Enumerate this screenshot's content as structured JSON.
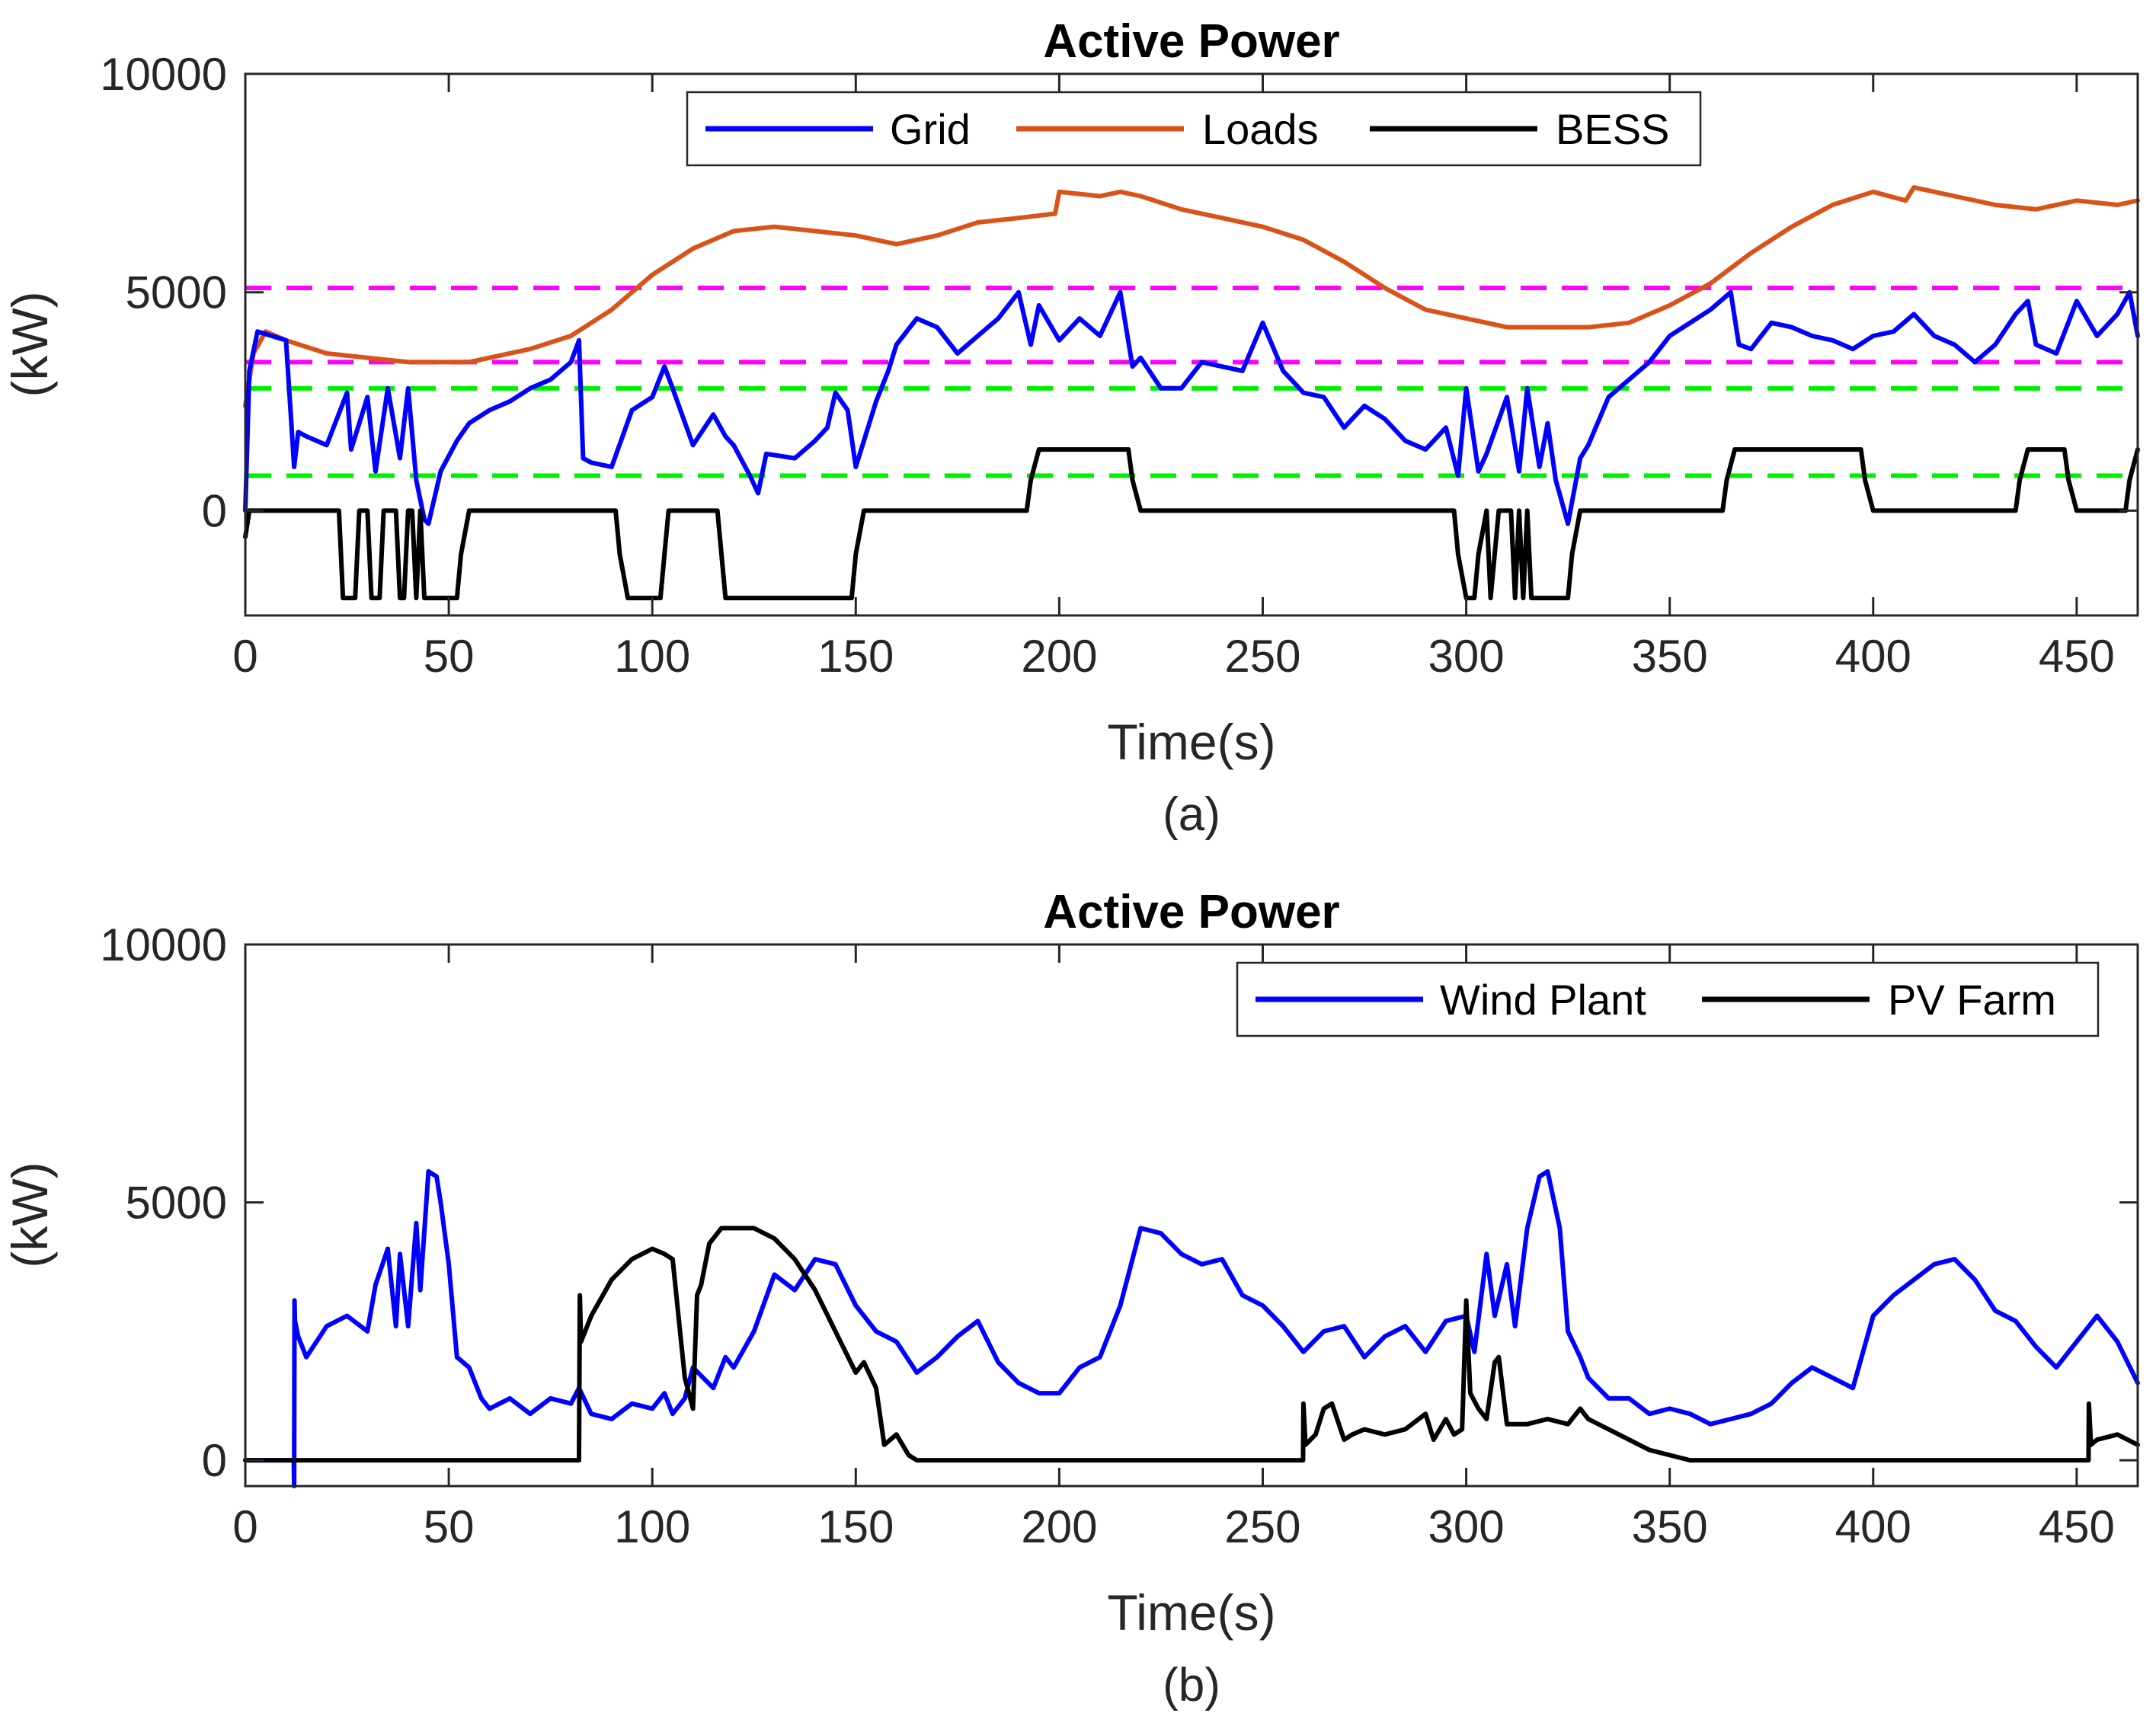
{
  "chart_data": [
    {
      "type": "line",
      "title": "Active Power",
      "caption": "(a)",
      "xlabel": "Time(s)",
      "ylabel": "(kW)",
      "xlim": [
        0,
        465
      ],
      "ylim": [
        -2400,
        10000
      ],
      "xticks": [
        0,
        50,
        100,
        150,
        200,
        250,
        300,
        350,
        400,
        450
      ],
      "yticks": [
        0,
        5000,
        10000
      ],
      "legend_position": "top-center",
      "series": [
        {
          "name": "Grid",
          "color": "#0000ff",
          "x": [
            0,
            1,
            3,
            10,
            12,
            13,
            15,
            20,
            25,
            26,
            30,
            32,
            35,
            38,
            40,
            42,
            44,
            45,
            48,
            52,
            55,
            60,
            65,
            70,
            75,
            80,
            82,
            83,
            85,
            90,
            95,
            100,
            103,
            105,
            110,
            115,
            118,
            120,
            124,
            126,
            128,
            135,
            140,
            143,
            145,
            148,
            150,
            155,
            158,
            160,
            165,
            170,
            175,
            180,
            185,
            190,
            193,
            195,
            200,
            205,
            210,
            215,
            218,
            220,
            225,
            230,
            235,
            240,
            245,
            250,
            255,
            260,
            265,
            270,
            275,
            280,
            285,
            290,
            295,
            298,
            300,
            303,
            305,
            310,
            313,
            315,
            318,
            320,
            322,
            325,
            328,
            330,
            335,
            340,
            345,
            350,
            355,
            360,
            365,
            367,
            370,
            375,
            380,
            385,
            390,
            395,
            400,
            405,
            410,
            415,
            420,
            425,
            430,
            435,
            438,
            440,
            445,
            450,
            455,
            460,
            463,
            465
          ],
          "values": [
            0,
            3200,
            4100,
            3900,
            1000,
            1800,
            1700,
            1500,
            2700,
            1400,
            2600,
            900,
            2800,
            1200,
            2800,
            700,
            -200,
            -300,
            900,
            1600,
            2000,
            2300,
            2500,
            2800,
            3000,
            3400,
            3900,
            1200,
            1100,
            1000,
            2300,
            2600,
            3300,
            2800,
            1500,
            2200,
            1700,
            1500,
            800,
            400,
            1300,
            1200,
            1600,
            1900,
            2700,
            2300,
            1000,
            2500,
            3200,
            3800,
            4400,
            4200,
            3600,
            4000,
            4400,
            5000,
            3800,
            4700,
            3900,
            4400,
            4000,
            5000,
            3300,
            3500,
            2800,
            2800,
            3400,
            3300,
            3200,
            4300,
            3200,
            2700,
            2600,
            1900,
            2400,
            2100,
            1600,
            1400,
            1900,
            800,
            2800,
            900,
            1300,
            2600,
            900,
            2800,
            1000,
            2000,
            700,
            -300,
            1200,
            1500,
            2600,
            3000,
            3400,
            4000,
            4300,
            4600,
            5000,
            3800,
            3700,
            4300,
            4200,
            4000,
            3900,
            3700,
            4000,
            4100,
            4500,
            4000,
            3800,
            3400,
            3800,
            4500,
            4800,
            3800,
            3600,
            4800,
            4000,
            4500,
            5000,
            4000
          ]
        },
        {
          "name": "Loads",
          "color": "#d95319",
          "x": [
            0,
            2,
            5,
            10,
            20,
            30,
            40,
            50,
            55,
            60,
            70,
            80,
            90,
            100,
            110,
            120,
            130,
            140,
            150,
            160,
            170,
            180,
            190,
            199,
            200,
            210,
            215,
            220,
            230,
            240,
            250,
            260,
            270,
            280,
            290,
            300,
            310,
            320,
            330,
            340,
            350,
            360,
            370,
            380,
            390,
            400,
            408,
            410,
            420,
            430,
            440,
            450,
            460,
            465
          ],
          "values": [
            2400,
            3600,
            4100,
            3900,
            3600,
            3500,
            3400,
            3400,
            3400,
            3500,
            3700,
            4000,
            4600,
            5400,
            6000,
            6400,
            6500,
            6400,
            6300,
            6100,
            6300,
            6600,
            6700,
            6800,
            7300,
            7200,
            7300,
            7200,
            6900,
            6700,
            6500,
            6200,
            5700,
            5100,
            4600,
            4400,
            4200,
            4200,
            4200,
            4300,
            4700,
            5200,
            5900,
            6500,
            7000,
            7300,
            7100,
            7400,
            7200,
            7000,
            6900,
            7100,
            7000,
            7100
          ]
        },
        {
          "name": "BESS",
          "color": "#000000",
          "x": [
            0,
            1,
            2,
            4,
            23,
            24,
            27,
            28,
            30,
            31,
            33,
            34,
            37,
            38,
            39,
            40,
            41,
            42,
            43,
            44,
            46,
            52,
            53,
            55,
            91,
            92,
            94,
            102,
            103,
            104,
            116,
            117,
            118,
            149,
            150,
            152,
            192,
            193,
            195,
            217,
            218,
            220,
            297,
            298,
            300,
            302,
            303,
            305,
            306,
            308,
            311,
            312,
            313,
            314,
            315,
            316,
            317,
            318,
            325,
            326,
            328,
            363,
            364,
            366,
            397,
            398,
            400,
            435,
            436,
            438,
            447,
            448,
            450,
            462,
            463,
            465
          ],
          "values": [
            -600,
            0,
            0,
            0,
            0,
            -2000,
            -2000,
            0,
            0,
            -2000,
            -2000,
            0,
            0,
            -2000,
            -2000,
            0,
            0,
            -2000,
            0,
            -2000,
            -2000,
            -2000,
            -1000,
            0,
            0,
            -1000,
            -2000,
            -2000,
            -1000,
            0,
            0,
            -1000,
            -2000,
            -2000,
            -1000,
            0,
            0,
            700,
            1400,
            1400,
            700,
            0,
            0,
            -1000,
            -2000,
            -2000,
            -1000,
            0,
            -2000,
            0,
            0,
            -2000,
            0,
            -2000,
            0,
            -2000,
            -2000,
            -2000,
            -2000,
            -1000,
            0,
            0,
            700,
            1400,
            1400,
            700,
            0,
            0,
            700,
            1400,
            1400,
            700,
            0,
            0,
            700,
            1400
          ]
        }
      ],
      "reference_lines": [
        {
          "value": 5100,
          "color": "#ff00ff"
        },
        {
          "value": 3400,
          "color": "#ff00ff"
        },
        {
          "value": 2800,
          "color": "#00ee00"
        },
        {
          "value": 800,
          "color": "#00ee00"
        }
      ]
    },
    {
      "type": "line",
      "title": "Active Power",
      "caption": "(b)",
      "xlabel": "Time(s)",
      "ylabel": "(kW)",
      "xlim": [
        0,
        465
      ],
      "ylim": [
        -500,
        10000
      ],
      "xticks": [
        0,
        50,
        100,
        150,
        200,
        250,
        300,
        350,
        400,
        450
      ],
      "yticks": [
        0,
        5000,
        10000
      ],
      "legend_position": "top-right",
      "series": [
        {
          "name": "Wind Plant",
          "color": "#0000ff",
          "x": [
            0,
            11.9,
            12,
            12.1,
            12.2,
            13,
            15,
            20,
            25,
            30,
            32,
            35,
            37,
            38,
            40,
            42,
            43,
            45,
            47,
            48,
            50,
            52,
            55,
            58,
            60,
            65,
            70,
            75,
            80,
            82,
            85,
            90,
            95,
            100,
            103,
            105,
            108,
            110,
            115,
            118,
            120,
            125,
            130,
            135,
            140,
            145,
            150,
            155,
            160,
            165,
            170,
            175,
            180,
            185,
            190,
            195,
            200,
            205,
            210,
            215,
            220,
            225,
            230,
            235,
            240,
            245,
            250,
            255,
            260,
            265,
            270,
            275,
            280,
            285,
            290,
            295,
            300,
            302,
            305,
            307,
            310,
            312,
            315,
            318,
            320,
            323,
            325,
            328,
            330,
            335,
            340,
            345,
            350,
            355,
            360,
            365,
            370,
            375,
            380,
            385,
            390,
            395,
            400,
            405,
            410,
            415,
            420,
            425,
            430,
            435,
            440,
            445,
            450,
            455,
            460,
            465
          ],
          "values": [
            0,
            0,
            -500,
            3100,
            2700,
            2400,
            2000,
            2600,
            2800,
            2500,
            3400,
            4100,
            2600,
            4000,
            2600,
            4600,
            3300,
            5600,
            5500,
            5000,
            3800,
            2000,
            1800,
            1200,
            1000,
            1200,
            900,
            1200,
            1100,
            1400,
            900,
            800,
            1100,
            1000,
            1300,
            900,
            1200,
            1800,
            1400,
            2000,
            1800,
            2500,
            3600,
            3300,
            3900,
            3800,
            3000,
            2500,
            2300,
            1700,
            2000,
            2400,
            2700,
            1900,
            1500,
            1300,
            1300,
            1800,
            2000,
            3000,
            4500,
            4400,
            4000,
            3800,
            3900,
            3200,
            3000,
            2600,
            2100,
            2500,
            2600,
            2000,
            2400,
            2600,
            2100,
            2700,
            2800,
            2100,
            4000,
            2800,
            3800,
            2600,
            4500,
            5500,
            5600,
            4500,
            2500,
            2000,
            1600,
            1200,
            1200,
            900,
            1000,
            900,
            700,
            800,
            900,
            1100,
            1500,
            1800,
            1600,
            1400,
            2800,
            3200,
            3500,
            3800,
            3900,
            3500,
            2900,
            2700,
            2200,
            1800,
            2300,
            2800,
            2300,
            1500
          ]
        },
        {
          "name": "PV Farm",
          "color": "#000000",
          "x": [
            0,
            81.9,
            82,
            82.2,
            82.5,
            85,
            90,
            95,
            100,
            103,
            105,
            108,
            110,
            111,
            112,
            114,
            117,
            120,
            125,
            130,
            135,
            140,
            145,
            150,
            152,
            155,
            157,
            160,
            163,
            165,
            170,
            200,
            259.9,
            260,
            260.5,
            263,
            265,
            267,
            270,
            272,
            275,
            280,
            285,
            290,
            292,
            295,
            297,
            299,
            300,
            301,
            303,
            305,
            307,
            308,
            310,
            315,
            320,
            325,
            328,
            330,
            335,
            340,
            345,
            350,
            355,
            360,
            400,
            452.9,
            453,
            453.5,
            455,
            460,
            465
          ],
          "values": [
            0,
            0,
            0,
            3200,
            2300,
            2800,
            3500,
            3900,
            4100,
            4000,
            3900,
            1600,
            1000,
            3200,
            3400,
            4200,
            4500,
            4500,
            4500,
            4300,
            3900,
            3300,
            2500,
            1700,
            1900,
            1400,
            300,
            500,
            100,
            0,
            0,
            0,
            0,
            1100,
            300,
            500,
            1000,
            1100,
            400,
            500,
            600,
            500,
            600,
            900,
            400,
            800,
            500,
            600,
            3100,
            1300,
            1000,
            800,
            1900,
            2000,
            700,
            700,
            800,
            700,
            1000,
            800,
            600,
            400,
            200,
            100,
            0,
            0,
            0,
            0,
            1100,
            300,
            400,
            500,
            300
          ]
        }
      ]
    }
  ]
}
